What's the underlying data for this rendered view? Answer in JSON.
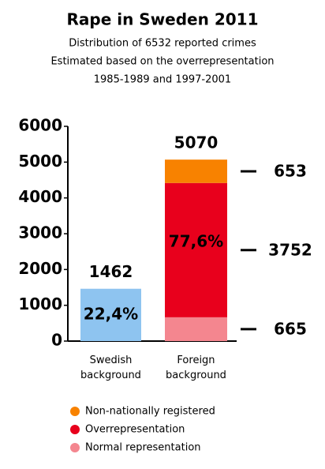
{
  "chart_data": {
    "type": "stacked_bar",
    "title": "Rape in Sweden 2011",
    "subtitle": [
      "Distribution of 6532 reported crimes",
      "Estimated based on the overrepresentation",
      "1985-1989 and 1997-2001"
    ],
    "categories": [
      "Swedish background",
      "Foreign background"
    ],
    "series": [
      {
        "color": "#8ec4f0",
        "values": [
          1462,
          null
        ]
      },
      {
        "name": "Normal representation",
        "color": "#f4868f",
        "values": [
          null,
          665
        ]
      },
      {
        "name": "Overrepresentation",
        "color": "#e8001c",
        "values": [
          null,
          3752
        ]
      },
      {
        "name": "Non-nationally registered",
        "color": "#f88200",
        "values": [
          null,
          653
        ]
      }
    ],
    "totals": [
      1462,
      5070
    ],
    "shares": [
      22.4,
      77.6
    ],
    "share_labels": [
      "22,4%",
      "77,6%"
    ],
    "ylim": [
      0,
      6000
    ],
    "yticks": [
      0,
      1000,
      2000,
      3000,
      4000,
      5000,
      6000
    ]
  }
}
